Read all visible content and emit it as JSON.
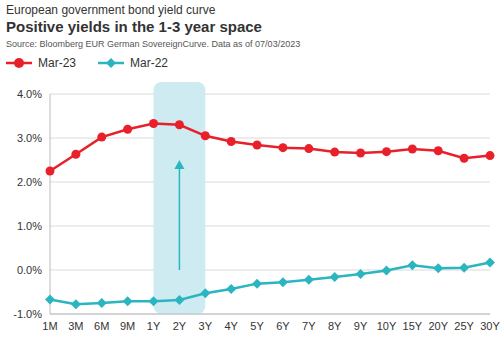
{
  "chart_data": {
    "type": "line",
    "title": "Positive yields in the 1-3 year space",
    "subtitle": "European government bond yield curve",
    "source": "Source: Bloomberg EUR German SovereignCurve. Data as of 07/03/2023",
    "categories": [
      "1M",
      "3M",
      "6M",
      "9M",
      "1Y",
      "2Y",
      "3Y",
      "4Y",
      "5Y",
      "6Y",
      "7Y",
      "8Y",
      "9Y",
      "10Y",
      "15Y",
      "20Y",
      "25Y",
      "30Y"
    ],
    "series": [
      {
        "name": "Mar-23",
        "color": "#e8202a",
        "marker": "circle",
        "values": [
          2.25,
          2.63,
          3.02,
          3.2,
          3.33,
          3.3,
          3.05,
          2.92,
          2.84,
          2.78,
          2.76,
          2.68,
          2.66,
          2.69,
          2.75,
          2.71,
          2.54,
          2.6
        ]
      },
      {
        "name": "Mar-22",
        "color": "#2bb5c0",
        "marker": "diamond",
        "values": [
          -0.67,
          -0.78,
          -0.75,
          -0.71,
          -0.71,
          -0.68,
          -0.53,
          -0.43,
          -0.31,
          -0.28,
          -0.22,
          -0.16,
          -0.09,
          -0.01,
          0.11,
          0.04,
          0.05,
          0.17
        ]
      }
    ],
    "ylim": [
      -1,
      4
    ],
    "yticks": [
      {
        "value": -1,
        "label": "-1.0%"
      },
      {
        "value": 0,
        "label": "0.0%"
      },
      {
        "value": 1,
        "label": "1.0%"
      },
      {
        "value": 2,
        "label": "2.0%"
      },
      {
        "value": 3,
        "label": "3.0%"
      },
      {
        "value": 4,
        "label": "4.0%"
      }
    ],
    "grid": true,
    "legend": "top",
    "highlight": {
      "from": "1Y",
      "to": "3Y",
      "color": "#cdebf0"
    },
    "arrow": {
      "x": "2Y",
      "y_from": 0,
      "y_to": 2.5,
      "color": "#2bb5c0"
    }
  }
}
